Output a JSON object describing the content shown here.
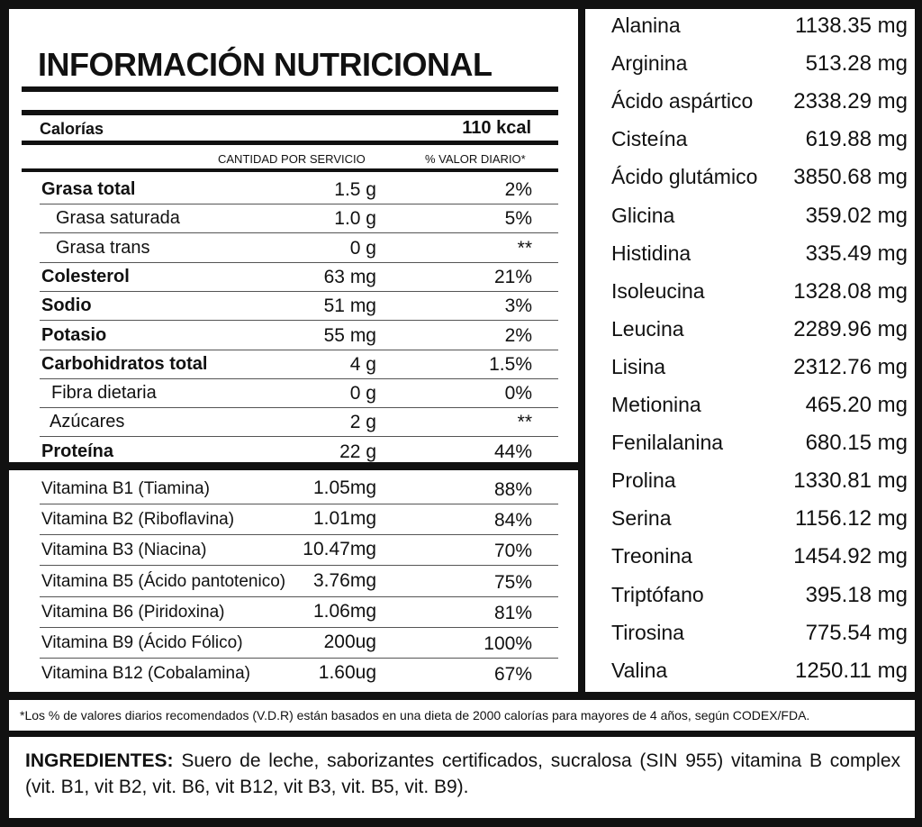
{
  "header": {
    "title": "INFORMACIÓN NUTRICIONAL"
  },
  "calories": {
    "label": "Calorías",
    "value": "110 kcal"
  },
  "columns": [
    "CANTIDAD POR SERVICIO",
    "% VALOR DIARIO*"
  ],
  "nutrients": [
    [
      "Grasa total",
      "1.5 g",
      "2%"
    ],
    [
      "Grasa saturada",
      "1.0 g",
      "5%"
    ],
    [
      "Grasa trans",
      "0 g",
      "**"
    ],
    [
      "Colesterol",
      "63 mg",
      "21%"
    ],
    [
      "Sodio",
      "51 mg",
      "3%"
    ],
    [
      "Potasio",
      "55 mg",
      "2%"
    ],
    [
      "Carbohidratos total",
      "4 g",
      "1.5%"
    ],
    [
      "Fibra dietaria",
      "0 g",
      "0%"
    ],
    [
      "Azúcares",
      "2 g",
      "**"
    ],
    [
      "Proteína",
      "22 g",
      "44%"
    ]
  ],
  "vitamins": [
    [
      "Vitamina B1 (Tiamina)",
      "1.05mg",
      "88%"
    ],
    [
      "Vitamina B2 (Riboflavina)",
      "1.01mg",
      "84%"
    ],
    [
      "Vitamina B3 (Niacina)",
      "10.47mg",
      "70%"
    ],
    [
      "Vitamina B5 (Ácido pantotenico)",
      "3.76mg",
      "75%"
    ],
    [
      "Vitamina B6 (Piridoxina)",
      "1.06mg",
      "81%"
    ],
    [
      "Vitamina B9 (Ácido Fólico)",
      "200ug",
      "100%"
    ],
    [
      "Vitamina B12 (Cobalamina)",
      "1.60ug",
      "67%"
    ]
  ],
  "amino_acids": [
    [
      "Alanina",
      "1138.35 mg"
    ],
    [
      "Arginina",
      "513.28 mg"
    ],
    [
      "Ácido aspártico",
      "2338.29 mg"
    ],
    [
      "Cisteína",
      "619.88 mg"
    ],
    [
      "Ácido glutámico",
      "3850.68 mg"
    ],
    [
      "Glicina",
      "359.02 mg"
    ],
    [
      "Histidina",
      "335.49 mg"
    ],
    [
      "Isoleucina",
      "1328.08 mg"
    ],
    [
      "Leucina",
      "2289.96 mg"
    ],
    [
      "Lisina",
      "2312.76 mg"
    ],
    [
      "Metionina",
      "465.20 mg"
    ],
    [
      "Fenilalanina",
      "680.15 mg"
    ],
    [
      "Prolina",
      "1330.81 mg"
    ],
    [
      "Serina",
      "1156.12 mg"
    ],
    [
      "Treonina",
      "1454.92 mg"
    ],
    [
      "Triptófano",
      "395.18 mg"
    ],
    [
      "Tirosina",
      "775.54 mg"
    ],
    [
      "Valina",
      "1250.11 mg"
    ]
  ],
  "footnote": "*Los % de valores diarios recomendados (V.D.R) están basados en una dieta de 2000 calorías para mayores de 4 años, según CODEX/FDA.",
  "ingredients": {
    "label": "INGREDIENTES:",
    "text": "Suero de leche, saborizantes certificados, sucralosa (SIN 955) vitamina B complex (vit. B1, vit B2, vit. B6, vit B12, vit B3, vit. B5, vit. B9)."
  }
}
